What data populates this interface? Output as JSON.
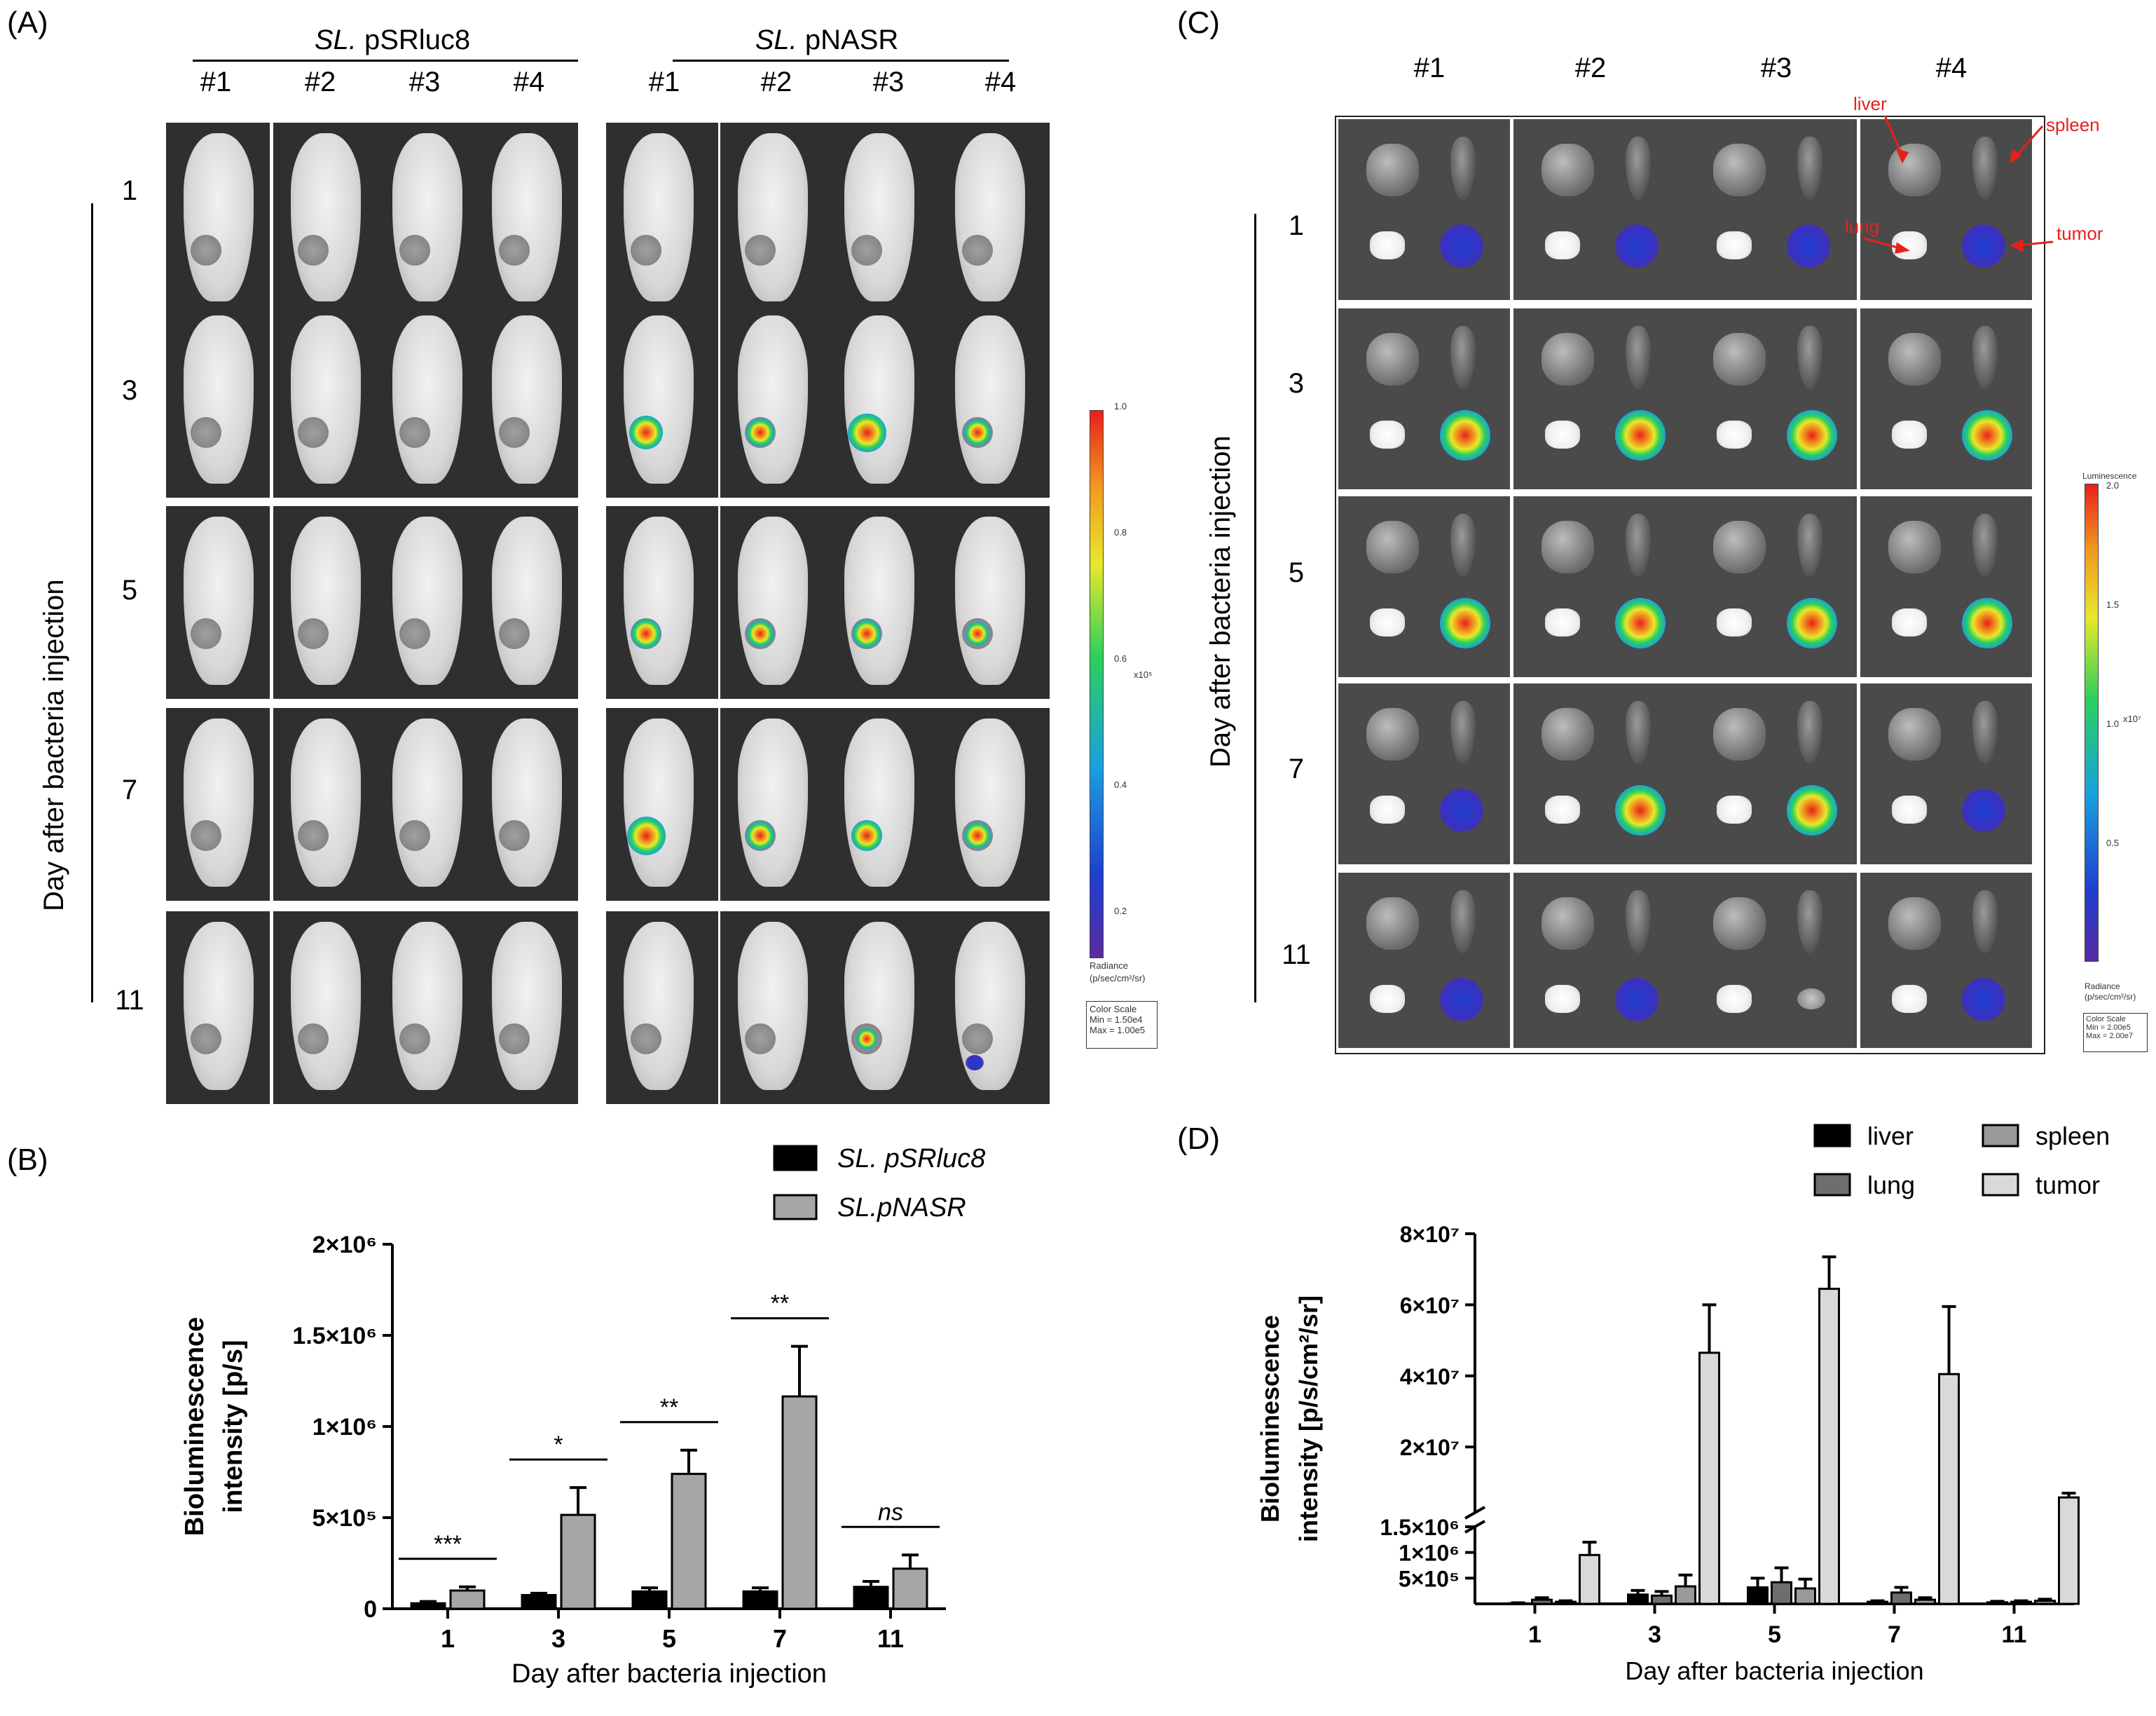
{
  "panels": {
    "A": {
      "letter": "(A)",
      "group1": "pSRluc8",
      "group1_prefix": "SL.",
      "group2": "pNASR",
      "group2_prefix": "SL.",
      "mouse_labels": [
        "#1",
        "#2",
        "#3",
        "#4"
      ],
      "days": [
        "1",
        "3",
        "5",
        "7",
        "11"
      ],
      "vertical_label": "Day after bacteria injection",
      "scale": {
        "ticks": [
          "1.0",
          "0.8",
          "0.6",
          "0.4",
          "0.2"
        ],
        "exponent": "x10⁵",
        "title": "Radiance",
        "units": "(p/sec/cm²/sr)",
        "box_line1": "Color Scale",
        "box_line2": "Min = 1.50e4",
        "box_line3": "Max = 1.00e5"
      }
    },
    "C": {
      "letter": "(C)",
      "mouse_labels": [
        "#1",
        "#2",
        "#3",
        "#4"
      ],
      "days": [
        "1",
        "3",
        "5",
        "7",
        "11"
      ],
      "vertical_label": "Day after bacteria injection",
      "annotations": [
        "liver",
        "spleen",
        "lung",
        "tumor"
      ],
      "scale": {
        "title_top": "Luminescence",
        "ticks": [
          "2.0",
          "1.5",
          "1.0",
          "0.5"
        ],
        "exponent": "x10⁷",
        "title": "Radiance",
        "units": "(p/sec/cm²/sr)",
        "box_line1": "Color Scale",
        "box_line2": "Min = 2.00e5",
        "box_line3": "Max = 2.00e7"
      }
    },
    "B": {
      "letter": "(B)"
    },
    "D": {
      "letter": "(D)"
    }
  },
  "colors": {
    "black_bar": "#000000",
    "gray_bar": "#a6a6a6",
    "lung_bar": "#6e6e6e",
    "spleen_bar": "#9a9a9a",
    "tumor_bar": "#d9d9d9",
    "annotation_red": "#e8201c"
  },
  "chart_data": [
    {
      "id": "B",
      "type": "bar",
      "categories": [
        "1",
        "3",
        "5",
        "7",
        "11"
      ],
      "series": [
        {
          "name": "SL. pSRluc8",
          "values": [
            30000,
            75000,
            95000,
            95000,
            120000
          ],
          "errors": [
            10000,
            10000,
            20000,
            20000,
            30000
          ],
          "color": "#000000"
        },
        {
          "name": "SL.pNASR",
          "values": [
            100000,
            515000,
            740000,
            1165000,
            220000
          ],
          "errors": [
            20000,
            150000,
            130000,
            275000,
            75000
          ],
          "color": "#a6a6a6"
        }
      ],
      "significance": [
        "***",
        "*",
        "**",
        "**",
        "ns"
      ],
      "xlabel": "Day after bacteria injection",
      "ylabel_line1": "Bioluminescence",
      "ylabel_line2": "intensity [p/s]",
      "ylim": [
        0,
        2000000
      ],
      "yticks": [
        {
          "value": 0,
          "label": "0"
        },
        {
          "value": 500000,
          "label": "5×10⁵"
        },
        {
          "value": 1000000,
          "label": "1×10⁶"
        },
        {
          "value": 1500000,
          "label": "1.5×10⁶"
        },
        {
          "value": 2000000,
          "label": "2×10⁶"
        }
      ],
      "legend_position": "top-right"
    },
    {
      "id": "D",
      "type": "bar",
      "categories": [
        "1",
        "3",
        "5",
        "7",
        "11"
      ],
      "series": [
        {
          "name": "liver",
          "values": [
            10000,
            180000,
            320000,
            40000,
            30000
          ],
          "errors": [
            10000,
            80000,
            180000,
            20000,
            20000
          ],
          "color": "#000000"
        },
        {
          "name": "lung",
          "values": [
            80000,
            160000,
            420000,
            220000,
            40000
          ],
          "errors": [
            40000,
            80000,
            280000,
            100000,
            20000
          ],
          "color": "#6e6e6e"
        },
        {
          "name": "spleen",
          "values": [
            40000,
            340000,
            300000,
            80000,
            60000
          ],
          "errors": [
            20000,
            220000,
            180000,
            40000,
            30000
          ],
          "color": "#9a9a9a"
        },
        {
          "name": "tumor",
          "values": [
            950000,
            46500000,
            64500000,
            40500000,
            5800000
          ],
          "errors": [
            250000,
            13500000,
            9000000,
            19000000,
            1200000
          ],
          "color": "#d9d9d9"
        }
      ],
      "xlabel": "Day after bacteria injection",
      "ylabel_line1": "Bioluminescence",
      "ylabel_line2": "intensity [p/s/cm²/sr]",
      "broken_axis": {
        "lower": [
          0,
          1500000
        ],
        "upper": [
          1500000,
          80000000
        ]
      },
      "yticks_lower": [
        {
          "value": 500000,
          "label": "5×10⁵"
        },
        {
          "value": 1000000,
          "label": "1×10⁶"
        },
        {
          "value": 1500000,
          "label": "1.5×10⁶"
        }
      ],
      "yticks_upper": [
        {
          "value": 20000000,
          "label": "2×10⁷"
        },
        {
          "value": 40000000,
          "label": "4×10⁷"
        },
        {
          "value": 60000000,
          "label": "6×10⁷"
        },
        {
          "value": 80000000,
          "label": "8×10⁷"
        }
      ],
      "legend_position": "top-right"
    }
  ]
}
